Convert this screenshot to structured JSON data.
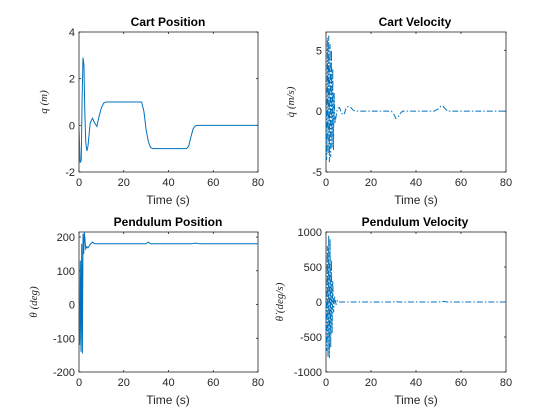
{
  "chart_data": [
    {
      "type": "line",
      "title": "Cart Position",
      "xlabel": "Time (s)",
      "ylabel": "q (m)",
      "xlim": [
        0,
        80
      ],
      "ylim": [
        -2,
        4
      ],
      "xticks": [
        0,
        20,
        40,
        60,
        80
      ],
      "yticks": [
        -2,
        0,
        2,
        4
      ],
      "line_style": "solid",
      "color": "#0072BD",
      "x": [
        0,
        0.5,
        1,
        1.4,
        1.8,
        2.2,
        2.6,
        3,
        3.5,
        4,
        5,
        6,
        7,
        8,
        9,
        10,
        11,
        12,
        13,
        14,
        20,
        28,
        29,
        30,
        31,
        32,
        33,
        34,
        36,
        44,
        48,
        49,
        50,
        51,
        52,
        53,
        54,
        56,
        65,
        80
      ],
      "y": [
        0,
        -1.6,
        -1.5,
        1.2,
        2.9,
        2.6,
        0.6,
        -0.7,
        -1.1,
        -0.9,
        0.1,
        0.3,
        0.1,
        -0.05,
        0.4,
        0.75,
        0.95,
        1.0,
        1.0,
        1.0,
        1.0,
        1.0,
        0.6,
        -0.2,
        -0.7,
        -0.95,
        -1.0,
        -1.0,
        -1.0,
        -1.0,
        -1.0,
        -0.9,
        -0.5,
        -0.15,
        -0.02,
        0.0,
        0.0,
        0.0,
        0.0,
        0.0
      ]
    },
    {
      "type": "line",
      "title": "Cart Velocity",
      "xlabel": "Time (s)",
      "ylabel": "q̇ (m/s)",
      "xlim": [
        0,
        80
      ],
      "ylim": [
        -5,
        6.5
      ],
      "xticks": [
        0,
        20,
        40,
        60,
        80
      ],
      "yticks": [
        -5,
        0,
        5
      ],
      "line_style": "dashdot",
      "color": "#0072BD",
      "x": [
        0,
        0.3,
        0.6,
        0.9,
        1.2,
        1.5,
        1.8,
        2.1,
        2.4,
        2.7,
        3,
        3.3,
        3.6,
        4,
        5,
        6,
        7,
        8,
        9,
        10,
        11,
        12,
        13,
        14,
        20,
        29,
        30,
        31,
        32,
        33,
        34,
        35,
        40,
        48,
        50,
        51,
        52,
        53,
        54,
        55,
        60,
        80
      ],
      "y": [
        0,
        -4,
        6,
        -3.5,
        6.2,
        -4.2,
        5.5,
        -3.8,
        5,
        -3,
        3.5,
        -3.2,
        1.5,
        -1,
        0.2,
        0.3,
        -0.2,
        -0.3,
        0.3,
        0.4,
        0.3,
        0.1,
        0,
        0,
        0,
        0,
        -0.2,
        -0.6,
        -0.5,
        -0.2,
        0,
        0,
        0,
        0,
        0.2,
        0.4,
        0.4,
        0.2,
        0,
        0,
        0,
        0
      ]
    },
    {
      "type": "line",
      "title": "Pendulum Position",
      "xlabel": "Time (s)",
      "ylabel": "θ (deg)",
      "xlim": [
        0,
        80
      ],
      "ylim": [
        -200,
        215
      ],
      "xticks": [
        0,
        20,
        40,
        60,
        80
      ],
      "yticks": [
        -200,
        -100,
        0,
        100,
        200
      ],
      "line_style": "solid",
      "color": "#0072BD",
      "x": [
        0,
        0.3,
        0.6,
        0.9,
        1.2,
        1.5,
        1.8,
        2.1,
        2.4,
        2.7,
        3,
        3.5,
        4,
        5,
        6,
        7,
        8,
        10,
        15,
        20,
        30,
        31,
        32,
        40,
        50,
        52,
        54,
        60,
        80
      ],
      "y": [
        0,
        -120,
        130,
        -140,
        180,
        -145,
        210,
        150,
        215,
        190,
        165,
        172,
        168,
        178,
        185,
        180,
        180,
        180,
        180,
        180,
        180,
        185,
        180,
        180,
        180,
        182,
        180,
        180,
        180
      ]
    },
    {
      "type": "line",
      "title": "Pendulum Velocity",
      "xlabel": "Time (s)",
      "ylabel": "θ̇ (deg/s)",
      "xlim": [
        0,
        80
      ],
      "ylim": [
        -1000,
        1000
      ],
      "xticks": [
        0,
        20,
        40,
        60,
        80
      ],
      "yticks": [
        -1000,
        -500,
        0,
        500,
        1000
      ],
      "line_style": "dashdot",
      "color": "#0072BD",
      "x": [
        0,
        0.3,
        0.6,
        0.9,
        1.2,
        1.5,
        1.8,
        2.1,
        2.4,
        2.7,
        3,
        3.4,
        3.8,
        4.5,
        5,
        6,
        8,
        10,
        20,
        30,
        31,
        32,
        40,
        50,
        52,
        54,
        60,
        80
      ],
      "y": [
        0,
        -700,
        800,
        -780,
        950,
        -800,
        900,
        -650,
        600,
        -450,
        300,
        -150,
        80,
        -40,
        20,
        0,
        0,
        0,
        0,
        0,
        10,
        0,
        0,
        0,
        8,
        0,
        0,
        0
      ]
    }
  ]
}
